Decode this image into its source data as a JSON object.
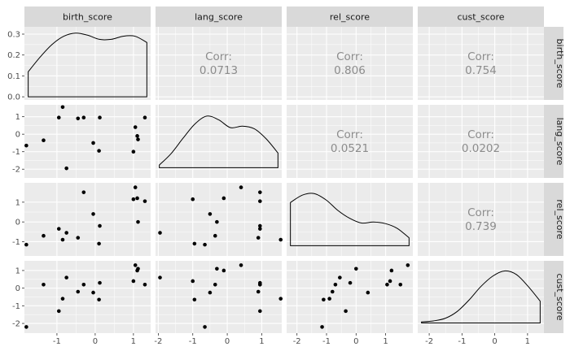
{
  "chart_data": {
    "type": "scatter",
    "variables": [
      "birth_score",
      "lang_score",
      "rel_score",
      "cust_score"
    ],
    "strip_labels": {
      "top": [
        "birth_score",
        "lang_score",
        "rel_score",
        "cust_score"
      ],
      "right": [
        "birth_score",
        "lang_score",
        "rel_score",
        "cust_score"
      ]
    },
    "x_axes": [
      {
        "range": [
          -1.85,
          1.45
        ],
        "ticks": [
          -1,
          0,
          1
        ],
        "tick_labels": [
          "-1",
          "0",
          "1"
        ]
      },
      {
        "range": [
          -2.08,
          1.58
        ],
        "ticks": [
          -2,
          -1,
          0,
          1
        ],
        "tick_labels": [
          "-2",
          "-1",
          "0",
          "1"
        ]
      },
      {
        "range": [
          -2.35,
          1.92
        ],
        "ticks": [
          -2,
          -1,
          0,
          1
        ],
        "tick_labels": [
          "-2",
          "-1",
          "0",
          "1"
        ]
      },
      {
        "range": [
          -2.35,
          1.5
        ],
        "ticks": [
          -2,
          -1,
          0,
          1
        ],
        "tick_labels": [
          "-2",
          "-1",
          "0",
          "1"
        ]
      }
    ],
    "y_axes": [
      {
        "range": [
          -0.015,
          0.335
        ],
        "ticks": [
          0.0,
          0.1,
          0.2,
          0.3
        ],
        "tick_labels": [
          "0.0",
          "0.1",
          "0.2",
          "0.3"
        ]
      },
      {
        "range": [
          -2.5,
          1.68
        ],
        "ticks": [
          -2,
          -1,
          0,
          1
        ],
        "tick_labels": [
          "-2",
          "-1",
          "0",
          "1"
        ]
      },
      {
        "range": [
          -1.72,
          1.98
        ],
        "ticks": [
          -1,
          0,
          1
        ],
        "tick_labels": [
          "-1",
          "0",
          "1"
        ]
      },
      {
        "range": [
          -2.55,
          1.55
        ],
        "ticks": [
          -2,
          -1,
          0,
          1
        ],
        "tick_labels": [
          "-2",
          "-1",
          "0",
          "1"
        ]
      }
    ],
    "points": {
      "birth_score": [
        -1.8,
        -1.35,
        -0.95,
        -0.85,
        -0.75,
        -0.45,
        -0.3,
        -0.05,
        0.1,
        0.12,
        1.0,
        1.05,
        1.1,
        1.12,
        1.3
      ],
      "lang_score": [
        -0.65,
        -0.35,
        0.95,
        1.55,
        -1.95,
        0.9,
        0.95,
        -0.5,
        -0.95,
        0.95,
        -1.0,
        0.4,
        -0.1,
        -0.3,
        0.95
      ],
      "rel_score": [
        -1.15,
        -0.7,
        -0.35,
        -0.9,
        -0.55,
        -0.8,
        1.5,
        0.4,
        -1.1,
        -0.2,
        1.15,
        1.75,
        1.2,
        0.0,
        1.05
      ],
      "cust_score": [
        -2.2,
        0.2,
        -1.3,
        -0.6,
        0.6,
        -0.2,
        0.2,
        -0.25,
        -0.65,
        0.3,
        0.4,
        1.3,
        1.0,
        1.1,
        0.2
      ]
    },
    "densities": {
      "birth_score": [
        0.12,
        0.19,
        0.25,
        0.29,
        0.305,
        0.295,
        0.275,
        0.275,
        0.29,
        0.29,
        0.26
      ],
      "lang_score": [
        0.05,
        0.27,
        0.56,
        0.83,
        0.98,
        0.91,
        0.76,
        0.79,
        0.74,
        0.55,
        0.28
      ],
      "rel_score": [
        0.82,
        0.96,
        0.99,
        0.87,
        0.67,
        0.52,
        0.43,
        0.45,
        0.42,
        0.33,
        0.15
      ],
      "cust_score": [
        0.02,
        0.04,
        0.09,
        0.22,
        0.44,
        0.7,
        0.9,
        1.0,
        0.93,
        0.7,
        0.42
      ]
    },
    "correlations": [
      {
        "row": 0,
        "col": 1,
        "label": "Corr:",
        "value": "0.0713"
      },
      {
        "row": 0,
        "col": 2,
        "label": "Corr:",
        "value": "0.806"
      },
      {
        "row": 0,
        "col": 3,
        "label": "Corr:",
        "value": "0.754"
      },
      {
        "row": 1,
        "col": 2,
        "label": "Corr:",
        "value": "0.0521"
      },
      {
        "row": 1,
        "col": 3,
        "label": "Corr:",
        "value": "0.0202"
      },
      {
        "row": 2,
        "col": 3,
        "label": "Corr:",
        "value": "0.739"
      }
    ],
    "colors": {
      "panel_background": "#ebebeb",
      "grid_major": "#ffffff",
      "strip_background": "#d9d9d9",
      "point": "#000000",
      "density_line": "#000000",
      "corr_text": "#8c8c8c"
    }
  }
}
